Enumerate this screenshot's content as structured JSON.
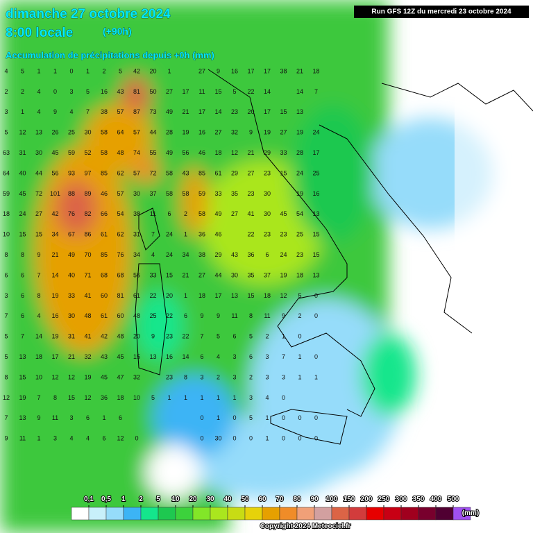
{
  "header": {
    "date": "dimanche 27 octobre 2024",
    "time": "8:00 locale",
    "lead": "(+90h)",
    "subtitle": "Accumulation de précipitations depuis +0h (mm)",
    "run": "Run GFS 12Z du mercredi 23 octobre 2024"
  },
  "grid": {
    "rows": [
      [
        4,
        5,
        1,
        1,
        0,
        1,
        2,
        5,
        42,
        20,
        1,
        null,
        27,
        9,
        16,
        17,
        17,
        38,
        21,
        18
      ],
      [
        2,
        2,
        4,
        0,
        3,
        5,
        16,
        43,
        81,
        50,
        27,
        17,
        11,
        15,
        5,
        22,
        14,
        null,
        14,
        7
      ],
      [
        3,
        1,
        4,
        9,
        4,
        7,
        38,
        57,
        87,
        73,
        49,
        21,
        17,
        14,
        23,
        20,
        17,
        15,
        13,
        null
      ],
      [
        5,
        12,
        13,
        26,
        25,
        30,
        58,
        64,
        57,
        44,
        28,
        19,
        16,
        27,
        32,
        9,
        19,
        27,
        19,
        24
      ],
      [
        63,
        31,
        30,
        45,
        59,
        52,
        58,
        48,
        74,
        55,
        49,
        56,
        46,
        18,
        12,
        21,
        29,
        33,
        28,
        17
      ],
      [
        64,
        40,
        44,
        56,
        93,
        97,
        85,
        62,
        57,
        72,
        58,
        43,
        85,
        61,
        29,
        27,
        23,
        15,
        24,
        25
      ],
      [
        59,
        45,
        72,
        101,
        88,
        89,
        46,
        57,
        30,
        37,
        58,
        58,
        59,
        33,
        35,
        23,
        30,
        null,
        19,
        16
      ],
      [
        18,
        24,
        27,
        42,
        76,
        82,
        66,
        54,
        38,
        11,
        6,
        2,
        58,
        49,
        27,
        41,
        30,
        45,
        54,
        13
      ],
      [
        10,
        15,
        15,
        34,
        67,
        86,
        61,
        62,
        31,
        7,
        24,
        1,
        36,
        46,
        null,
        22,
        23,
        23,
        25,
        15
      ],
      [
        8,
        8,
        9,
        21,
        49,
        70,
        85,
        76,
        34,
        4,
        24,
        34,
        38,
        29,
        43,
        36,
        6,
        24,
        23,
        15
      ],
      [
        6,
        6,
        7,
        14,
        40,
        71,
        68,
        68,
        56,
        33,
        15,
        21,
        27,
        44,
        30,
        35,
        37,
        19,
        18,
        13
      ],
      [
        3,
        6,
        8,
        19,
        33,
        41,
        60,
        81,
        61,
        22,
        20,
        1,
        18,
        17,
        13,
        15,
        18,
        12,
        5,
        0
      ],
      [
        7,
        6,
        4,
        16,
        30,
        48,
        61,
        60,
        48,
        25,
        22,
        6,
        9,
        9,
        11,
        8,
        11,
        9,
        2,
        0
      ],
      [
        5,
        7,
        14,
        19,
        31,
        41,
        42,
        48,
        20,
        9,
        23,
        22,
        7,
        5,
        6,
        5,
        2,
        1,
        0,
        null
      ],
      [
        5,
        13,
        18,
        17,
        21,
        32,
        43,
        45,
        15,
        13,
        16,
        14,
        6,
        4,
        3,
        6,
        3,
        7,
        1,
        0
      ],
      [
        8,
        15,
        10,
        12,
        12,
        19,
        45,
        47,
        32,
        null,
        23,
        8,
        3,
        2,
        3,
        2,
        3,
        3,
        1,
        1
      ],
      [
        12,
        19,
        7,
        8,
        15,
        12,
        36,
        18,
        10,
        5,
        1,
        1,
        1,
        1,
        1,
        3,
        4,
        0,
        null,
        null
      ],
      [
        7,
        13,
        9,
        11,
        3,
        6,
        1,
        6,
        null,
        null,
        null,
        null,
        0,
        1,
        0,
        5,
        1,
        0,
        0,
        0
      ],
      [
        9,
        11,
        1,
        3,
        4,
        4,
        6,
        12,
        0,
        null,
        null,
        null,
        0,
        30,
        0,
        0,
        1,
        0,
        0,
        0
      ]
    ]
  },
  "legend": {
    "ticks": [
      {
        "value": 0.1,
        "label": "0,1"
      },
      {
        "value": 0.5,
        "label": "0,5"
      },
      1,
      2,
      5,
      10,
      20,
      30,
      40,
      50,
      60,
      70,
      80,
      90,
      100,
      150,
      200,
      250,
      300,
      350,
      400,
      500
    ],
    "colors": [
      "#ffffff",
      "#c8f0fa",
      "#96dcfa",
      "#3cb4f5",
      "#14e68c",
      "#1ec850",
      "#3cd23c",
      "#82e628",
      "#aae61e",
      "#c8dc14",
      "#e6d20a",
      "#e6a000",
      "#f08c28",
      "#f0a078",
      "#d2a0a0",
      "#dc6446",
      "#d23c3c",
      "#e60000",
      "#c80014",
      "#a0001e",
      "#78002d",
      "#500032",
      "#a050f0"
    ],
    "unit": "(mm)"
  },
  "footer": {
    "copyright": "Copyright 2024 Meteociel.fr"
  }
}
